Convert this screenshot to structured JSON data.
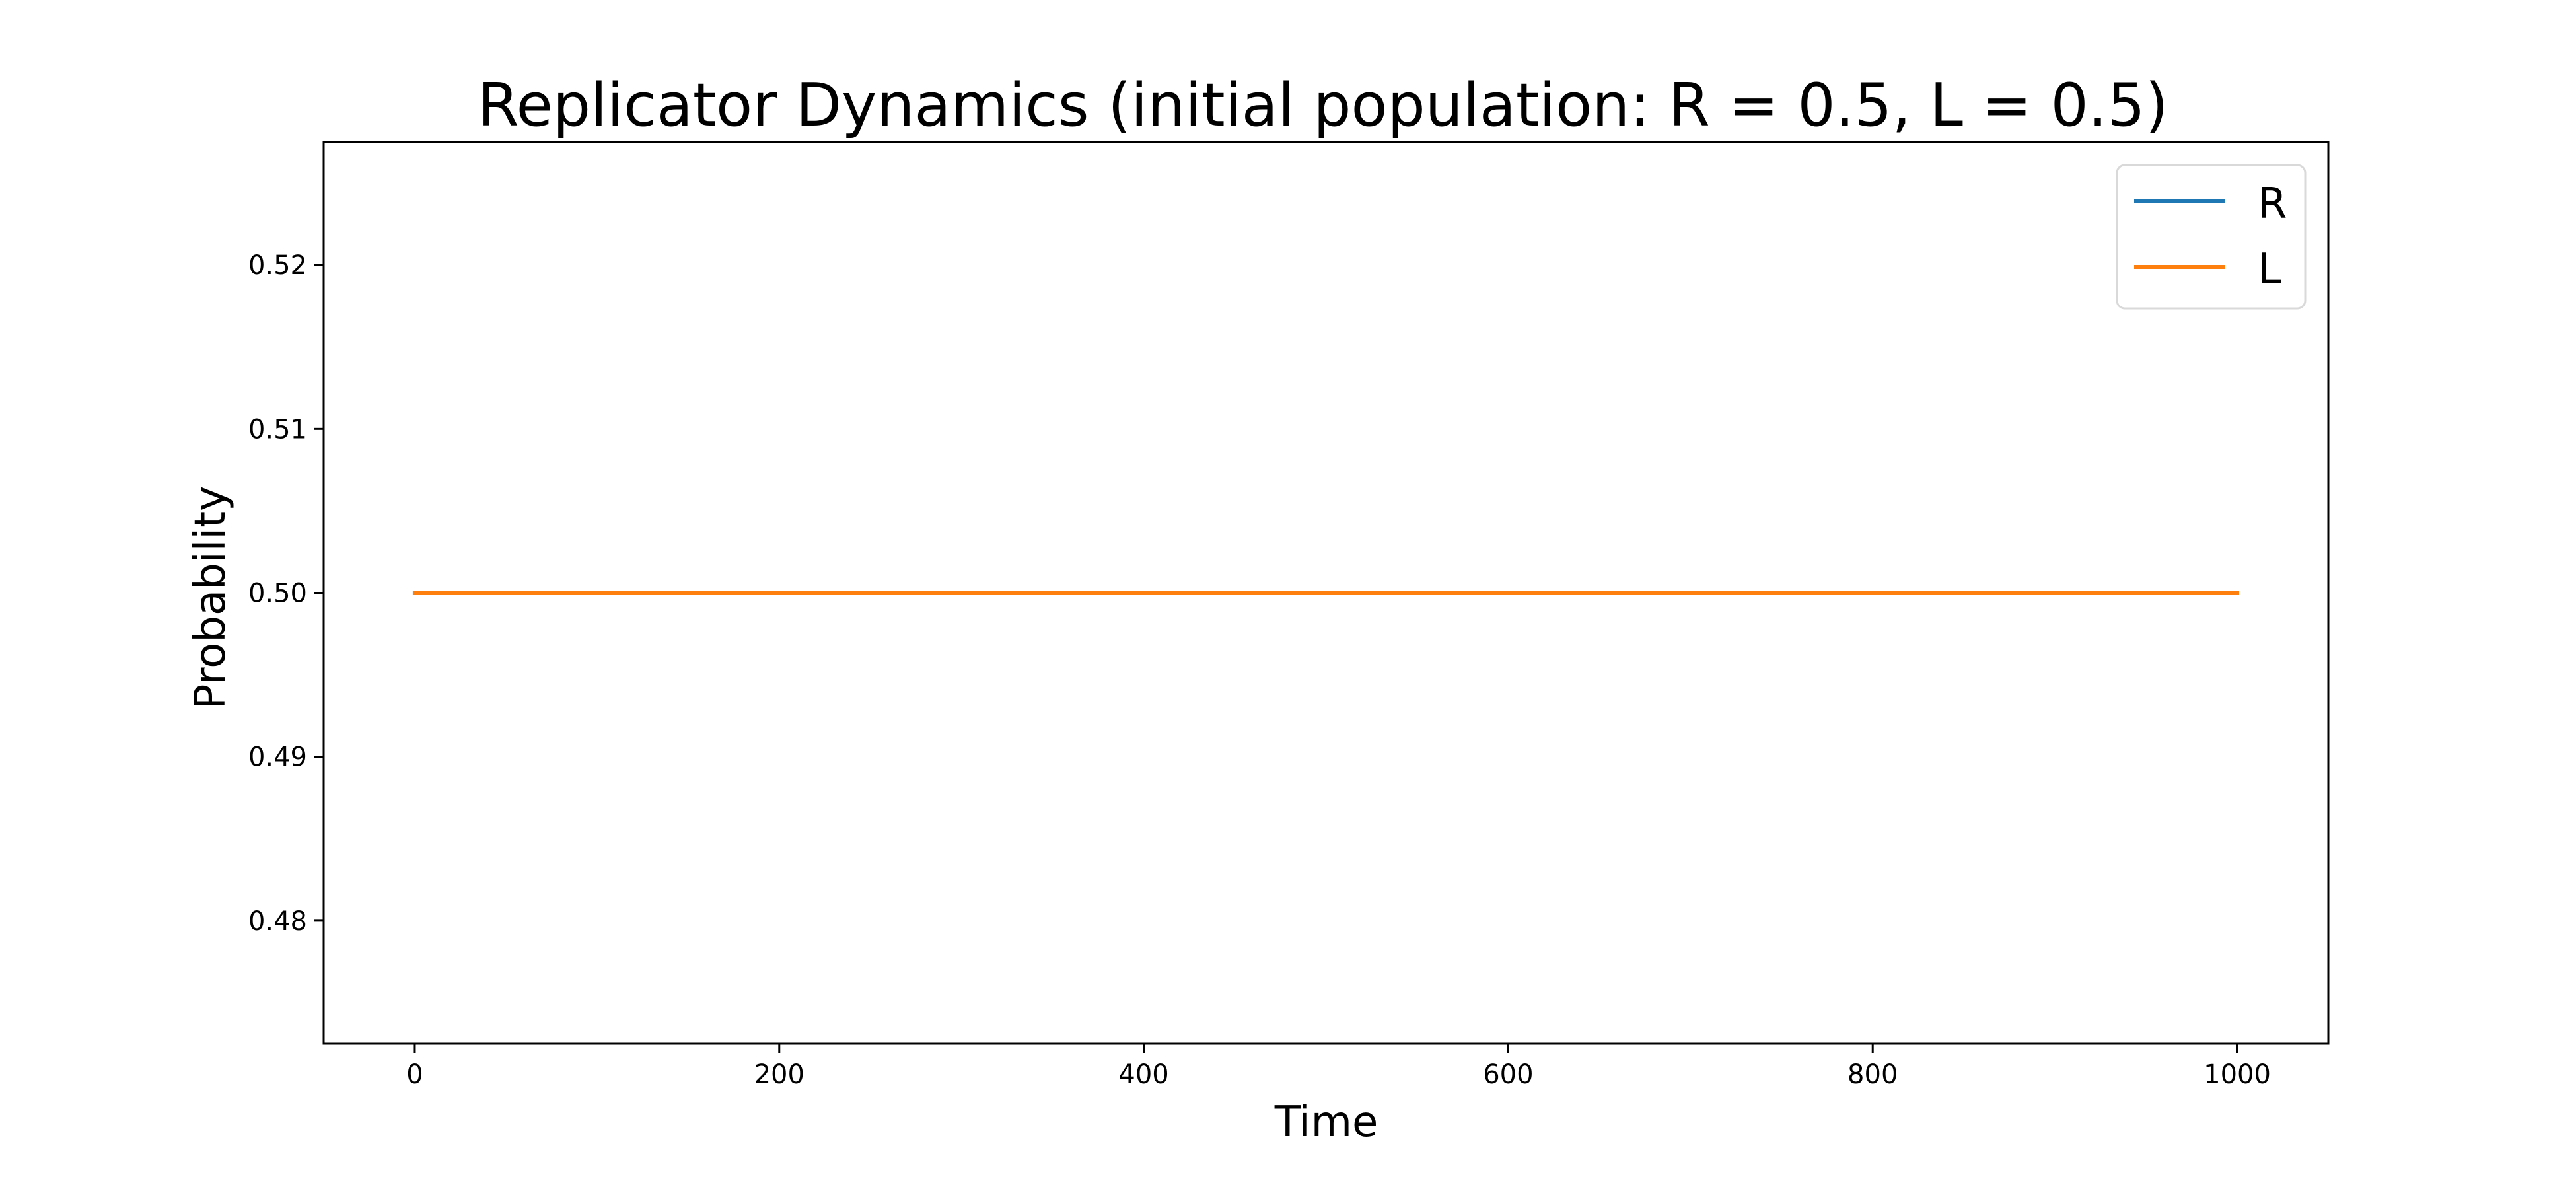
{
  "chart_data": {
    "type": "line",
    "title": "Replicator Dynamics (initial population: R = 0.5, L = 0.5)",
    "xlabel": "Time",
    "ylabel": "Probability",
    "xlim": [
      -50,
      1050
    ],
    "ylim": [
      0.4725,
      0.5275
    ],
    "xticks": [
      0,
      200,
      400,
      600,
      800,
      1000
    ],
    "xtick_labels": [
      "0",
      "200",
      "400",
      "600",
      "800",
      "1000"
    ],
    "yticks": [
      0.48,
      0.49,
      0.5,
      0.51,
      0.52
    ],
    "ytick_labels": [
      "0.48",
      "0.49",
      "0.50",
      "0.51",
      "0.52"
    ],
    "grid": false,
    "legend_position": "top-right",
    "series": [
      {
        "name": "R",
        "color": "#1f77b4",
        "x": [
          0,
          1000
        ],
        "y": [
          0.5,
          0.5
        ]
      },
      {
        "name": "L",
        "color": "#ff7f0e",
        "x": [
          0,
          1000
        ],
        "y": [
          0.5,
          0.5
        ]
      }
    ]
  }
}
